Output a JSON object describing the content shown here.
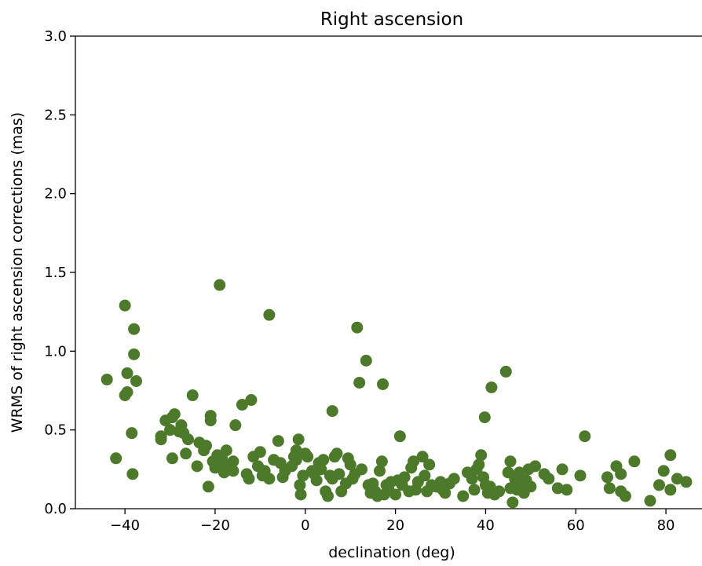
{
  "chart_data": {
    "type": "scatter",
    "title": "Right ascension",
    "xlabel": "declination (deg)",
    "ylabel": "WRMS of right ascension corrections (mas)",
    "xlim": [
      -51,
      88
    ],
    "ylim": [
      0,
      3.0
    ],
    "xticks": [
      -40,
      -20,
      0,
      20,
      40,
      60,
      80
    ],
    "yticks": [
      0.0,
      0.5,
      1.0,
      1.5,
      2.0,
      2.5,
      3.0
    ],
    "xtick_labels": [
      "−40",
      "−20",
      "0",
      "20",
      "40",
      "60",
      "80"
    ],
    "ytick_labels": [
      "0.0",
      "0.5",
      "1.0",
      "1.5",
      "2.0",
      "2.5",
      "3.0"
    ],
    "grid": false,
    "marker_color": "#4d7a2a",
    "points": [
      [
        -44,
        0.82
      ],
      [
        -42,
        0.32
      ],
      [
        -40,
        1.29
      ],
      [
        -40,
        0.72
      ],
      [
        -39.5,
        0.74
      ],
      [
        -39.5,
        0.86
      ],
      [
        -38.5,
        0.48
      ],
      [
        -38.3,
        0.22
      ],
      [
        -38,
        1.14
      ],
      [
        -38,
        0.98
      ],
      [
        -37.5,
        0.81
      ],
      [
        -32,
        0.44
      ],
      [
        -32,
        0.46
      ],
      [
        -31,
        0.56
      ],
      [
        -30,
        0.5
      ],
      [
        -29.5,
        0.58
      ],
      [
        -29.5,
        0.32
      ],
      [
        -29,
        0.6
      ],
      [
        -28,
        0.49
      ],
      [
        -27.5,
        0.53
      ],
      [
        -27,
        0.48
      ],
      [
        -26.5,
        0.35
      ],
      [
        -26,
        0.44
      ],
      [
        -25,
        0.72
      ],
      [
        -24,
        0.27
      ],
      [
        -23.5,
        0.42
      ],
      [
        -22.5,
        0.37
      ],
      [
        -22,
        0.4
      ],
      [
        -21.5,
        0.14
      ],
      [
        -21,
        0.59
      ],
      [
        -21,
        0.56
      ],
      [
        -20.5,
        0.3
      ],
      [
        -20,
        0.26
      ],
      [
        -19.5,
        0.34
      ],
      [
        -19,
        1.42
      ],
      [
        -18.5,
        0.32
      ],
      [
        -18,
        0.28
      ],
      [
        -18,
        0.23
      ],
      [
        -17.5,
        0.37
      ],
      [
        -17,
        0.25
      ],
      [
        -16,
        0.3
      ],
      [
        -16,
        0.24
      ],
      [
        -15.5,
        0.53
      ],
      [
        -14,
        0.66
      ],
      [
        -13,
        0.22
      ],
      [
        -12.5,
        0.19
      ],
      [
        -12,
        0.69
      ],
      [
        -11.5,
        0.33
      ],
      [
        -10.5,
        0.27
      ],
      [
        -10,
        0.36
      ],
      [
        -9.5,
        0.21
      ],
      [
        -9,
        0.24
      ],
      [
        -8,
        1.23
      ],
      [
        -8,
        0.19
      ],
      [
        -7,
        0.31
      ],
      [
        -6,
        0.43
      ],
      [
        -5.5,
        0.29
      ],
      [
        -5,
        0.2
      ],
      [
        -4.5,
        0.24
      ],
      [
        -3,
        0.27
      ],
      [
        -2.5,
        0.33
      ],
      [
        -2,
        0.31
      ],
      [
        -2,
        0.37
      ],
      [
        -1.5,
        0.44
      ],
      [
        -1.2,
        0.15
      ],
      [
        -1,
        0.09
      ],
      [
        -0.5,
        0.21
      ],
      [
        0,
        0.35
      ],
      [
        0.5,
        0.33
      ],
      [
        1.5,
        0.24
      ],
      [
        2,
        0.22
      ],
      [
        2.5,
        0.18
      ],
      [
        3,
        0.29
      ],
      [
        3.5,
        0.25
      ],
      [
        4,
        0.31
      ],
      [
        4.5,
        0.11
      ],
      [
        5,
        0.08
      ],
      [
        5.5,
        0.21
      ],
      [
        6,
        0.19
      ],
      [
        6,
        0.62
      ],
      [
        6.5,
        0.33
      ],
      [
        7,
        0.35
      ],
      [
        7.5,
        0.22
      ],
      [
        8,
        0.11
      ],
      [
        9,
        0.16
      ],
      [
        9.5,
        0.32
      ],
      [
        10,
        0.28
      ],
      [
        10.5,
        0.19
      ],
      [
        11,
        0.22
      ],
      [
        11.5,
        1.15
      ],
      [
        12,
        0.8
      ],
      [
        12.5,
        0.25
      ],
      [
        13.5,
        0.94
      ],
      [
        14,
        0.15
      ],
      [
        14.5,
        0.1
      ],
      [
        15,
        0.16
      ],
      [
        15.5,
        0.11
      ],
      [
        16,
        0.08
      ],
      [
        16.5,
        0.24
      ],
      [
        17,
        0.3
      ],
      [
        17.2,
        0.79
      ],
      [
        17.5,
        0.09
      ],
      [
        18,
        0.15
      ],
      [
        18.5,
        0.12
      ],
      [
        19,
        0.17
      ],
      [
        20,
        0.09
      ],
      [
        20.5,
        0.18
      ],
      [
        21,
        0.46
      ],
      [
        21.5,
        0.15
      ],
      [
        22,
        0.2
      ],
      [
        23,
        0.11
      ],
      [
        23.5,
        0.26
      ],
      [
        24,
        0.3
      ],
      [
        24.5,
        0.12
      ],
      [
        25,
        0.17
      ],
      [
        26,
        0.33
      ],
      [
        26.5,
        0.21
      ],
      [
        27,
        0.11
      ],
      [
        27.5,
        0.28
      ],
      [
        28,
        0.15
      ],
      [
        29,
        0.14
      ],
      [
        30,
        0.17
      ],
      [
        30.5,
        0.12
      ],
      [
        31,
        0.1
      ],
      [
        32,
        0.16
      ],
      [
        33,
        0.19
      ],
      [
        35,
        0.08
      ],
      [
        36,
        0.23
      ],
      [
        37,
        0.19
      ],
      [
        37.5,
        0.12
      ],
      [
        38,
        0.25
      ],
      [
        38.5,
        0.28
      ],
      [
        39,
        0.34
      ],
      [
        39.5,
        0.2
      ],
      [
        39.8,
        0.58
      ],
      [
        40,
        0.15
      ],
      [
        40.5,
        0.1
      ],
      [
        41,
        0.14
      ],
      [
        41.3,
        0.77
      ],
      [
        42,
        0.09
      ],
      [
        43,
        0.11
      ],
      [
        44.5,
        0.87
      ],
      [
        45,
        0.23
      ],
      [
        45.5,
        0.3
      ],
      [
        45.5,
        0.13
      ],
      [
        46,
        0.04
      ],
      [
        46.5,
        0.19
      ],
      [
        47,
        0.12
      ],
      [
        47.5,
        0.23
      ],
      [
        48,
        0.16
      ],
      [
        48.5,
        0.1
      ],
      [
        49,
        0.18
      ],
      [
        49.5,
        0.25
      ],
      [
        50,
        0.14
      ],
      [
        51,
        0.27
      ],
      [
        53,
        0.22
      ],
      [
        54,
        0.19
      ],
      [
        56,
        0.13
      ],
      [
        57,
        0.25
      ],
      [
        58,
        0.12
      ],
      [
        61,
        0.21
      ],
      [
        62,
        0.46
      ],
      [
        67,
        0.2
      ],
      [
        67.5,
        0.13
      ],
      [
        69,
        0.27
      ],
      [
        70,
        0.22
      ],
      [
        70,
        0.11
      ],
      [
        71,
        0.08
      ],
      [
        73,
        0.3
      ],
      [
        76.5,
        0.05
      ],
      [
        78.5,
        0.15
      ],
      [
        79.5,
        0.24
      ],
      [
        81,
        0.34
      ],
      [
        81,
        0.12
      ],
      [
        82.5,
        0.19
      ],
      [
        84.5,
        0.17
      ]
    ]
  }
}
